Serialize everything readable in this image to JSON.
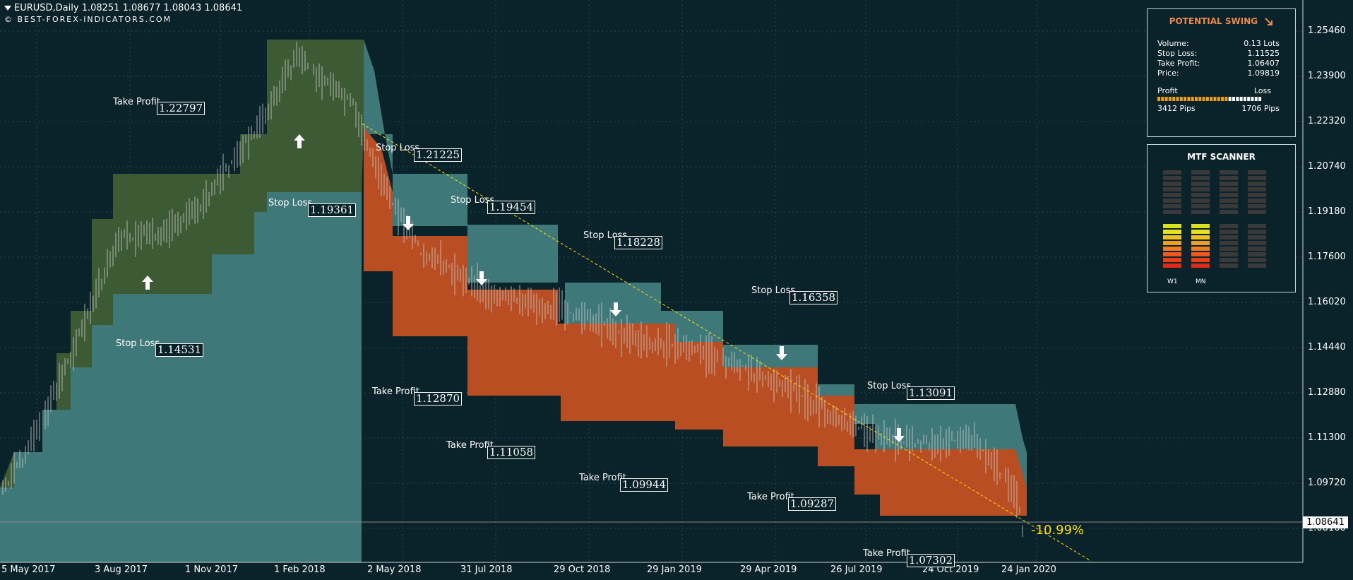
{
  "header": {
    "symbol_line": "EURUSD,Daily  1.08251 1.08677 1.08043 1.08641",
    "copyright": "© BEST-FOREX-INDICATORS.COM"
  },
  "price_axis": [
    "1.25460",
    "1.23900",
    "1.22320",
    "1.20740",
    "1.19180",
    "1.17600",
    "1.16020",
    "1.14440",
    "1.12880",
    "1.11300",
    "1.09720",
    "1.08160"
  ],
  "current_price": "1.08641",
  "date_axis": [
    "5 May 2017",
    "3 Aug 2017",
    "1 Nov 2017",
    "1 Feb 2018",
    "2 May 2018",
    "31 Jul 2018",
    "29 Oct 2018",
    "29 Jan 2019",
    "29 Apr 2019",
    "26 Jul 2019",
    "24 Oct 2019",
    "24 Jan 2020"
  ],
  "levels": [
    {
      "label": "Take Profit",
      "value": "1.22797"
    },
    {
      "label": "Stop Loss",
      "value": "1.21225"
    },
    {
      "label": "Stop Loss",
      "value": "1.19361"
    },
    {
      "label": "Stop Loss",
      "value": "1.19454"
    },
    {
      "label": "Stop Loss",
      "value": "1.18228"
    },
    {
      "label": "Stop Loss",
      "value": "1.16358"
    },
    {
      "label": "Stop Loss",
      "value": "1.14531"
    },
    {
      "label": "Take Profit",
      "value": "1.12870"
    },
    {
      "label": "Stop Loss",
      "value": "1.13091"
    },
    {
      "label": "Take Profit",
      "value": "1.11058"
    },
    {
      "label": "Take Profit",
      "value": "1.09944"
    },
    {
      "label": "Take Profit",
      "value": "1.09287"
    },
    {
      "label": "Take Profit",
      "value": "1.07302"
    }
  ],
  "trend_percent": "-10.99%",
  "potential_swing": {
    "title": "POTENTIAL SWING",
    "direction_icon": "arrow-down-right-icon",
    "rows": [
      {
        "k": "Volume:",
        "v": "0.13 Lots"
      },
      {
        "k": "Stop Loss:",
        "v": "1.11525"
      },
      {
        "k": "Take Profit:",
        "v": "1.06407"
      },
      {
        "k": "Price:",
        "v": "1.09819"
      }
    ],
    "profit_label": "Profit",
    "loss_label": "Loss",
    "profit_pips": "3412 Pips",
    "loss_pips": "1706 Pips",
    "profit_fraction": 0.667
  },
  "mtf_scanner": {
    "title": "MTF SCANNER",
    "columns": [
      {
        "label": "W1",
        "top_active": 0,
        "bottom_active": 8
      },
      {
        "label": "MN",
        "top_active": 0,
        "bottom_active": 8
      },
      {
        "label": "",
        "top_active": 0,
        "bottom_active": 0
      },
      {
        "label": "",
        "top_active": 0,
        "bottom_active": 0
      }
    ]
  },
  "colors": {
    "background": "#0a2229",
    "up_band": "#3c5a34",
    "down_band": "#b84e22",
    "neutral_band": "#3f7878",
    "trend_line": "#ffe000",
    "accent": "#f08a4b"
  }
}
